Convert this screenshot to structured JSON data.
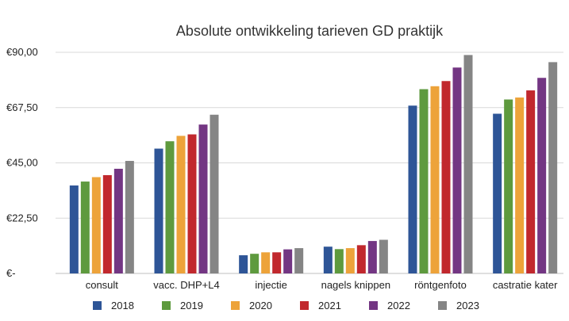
{
  "chart_data": {
    "type": "bar",
    "title": "Absolute ontwikkeling tarieven GD praktijk",
    "xlabel": "",
    "ylabel": "",
    "categories": [
      "consult",
      "vacc. DHP+L4",
      "injectie",
      "nagels knippen",
      "röntgenfoto",
      "castratie kater"
    ],
    "ylim": [
      0,
      90
    ],
    "yticks": [
      {
        "value": 0,
        "label": "€-"
      },
      {
        "value": 22.5,
        "label": "€22,50"
      },
      {
        "value": 45,
        "label": "€45,00"
      },
      {
        "value": 67.5,
        "label": "€67,50"
      },
      {
        "value": 90,
        "label": "€90,00"
      }
    ],
    "grid": true,
    "legend_position": "bottom",
    "series": [
      {
        "name": "2018",
        "color": "#2e5597",
        "values": [
          35.8,
          50.8,
          7.4,
          10.9,
          68.3,
          65.0
        ]
      },
      {
        "name": "2019",
        "color": "#5e9a3e",
        "values": [
          37.4,
          53.8,
          8.0,
          9.9,
          75.0,
          70.8
        ]
      },
      {
        "name": "2020",
        "color": "#eda33a",
        "values": [
          39.2,
          56.0,
          8.6,
          10.3,
          76.2,
          71.6
        ]
      },
      {
        "name": "2021",
        "color": "#c1282d",
        "values": [
          40.0,
          56.6,
          8.6,
          11.5,
          78.3,
          74.5
        ]
      },
      {
        "name": "2022",
        "color": "#733683",
        "values": [
          42.6,
          60.6,
          9.8,
          13.2,
          83.8,
          79.6
        ]
      },
      {
        "name": "2023",
        "color": "#858585",
        "values": [
          45.8,
          64.6,
          10.3,
          13.7,
          88.9,
          86.0
        ]
      }
    ]
  }
}
